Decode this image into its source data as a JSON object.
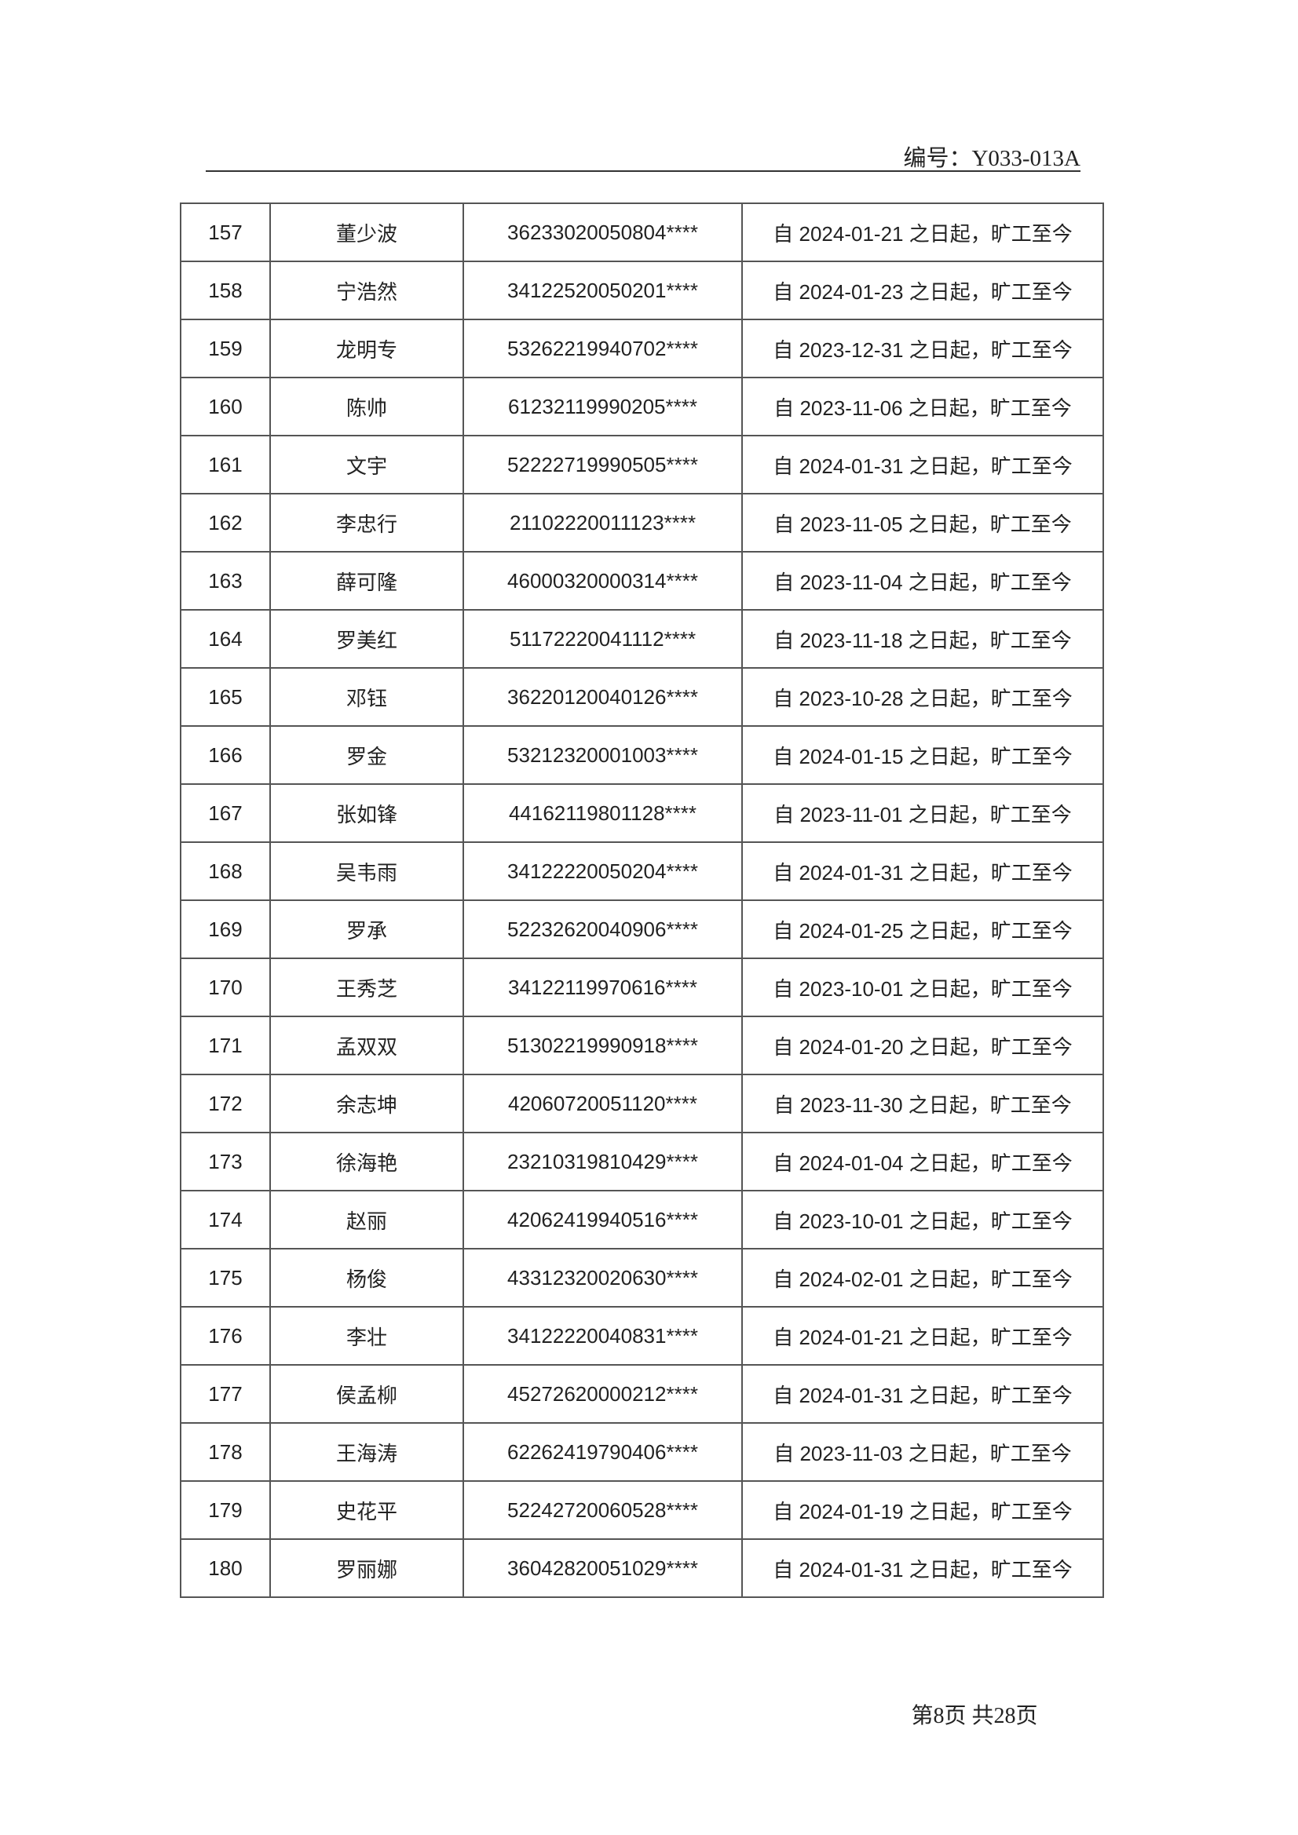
{
  "header": {
    "code": "编号：Y033-013A"
  },
  "table": {
    "rows": [
      [
        "157",
        "董少波",
        "36233020050804****",
        "自 2024-01-21 之日起，旷工至今"
      ],
      [
        "158",
        "宁浩然",
        "34122520050201****",
        "自 2024-01-23 之日起，旷工至今"
      ],
      [
        "159",
        "龙明专",
        "53262219940702****",
        "自 2023-12-31 之日起，旷工至今"
      ],
      [
        "160",
        "陈帅",
        "61232119990205****",
        "自 2023-11-06 之日起，旷工至今"
      ],
      [
        "161",
        "文宇",
        "52222719990505****",
        "自 2024-01-31 之日起，旷工至今"
      ],
      [
        "162",
        "李忠行",
        "21102220011123****",
        "自 2023-11-05 之日起，旷工至今"
      ],
      [
        "163",
        "薛可隆",
        "46000320000314****",
        "自 2023-11-04 之日起，旷工至今"
      ],
      [
        "164",
        "罗美红",
        "51172220041112****",
        "自 2023-11-18 之日起，旷工至今"
      ],
      [
        "165",
        "邓钰",
        "36220120040126****",
        "自 2023-10-28 之日起，旷工至今"
      ],
      [
        "166",
        "罗金",
        "53212320001003****",
        "自 2024-01-15 之日起，旷工至今"
      ],
      [
        "167",
        "张如锋",
        "44162119801128****",
        "自 2023-11-01 之日起，旷工至今"
      ],
      [
        "168",
        "吴韦雨",
        "34122220050204****",
        "自 2024-01-31 之日起，旷工至今"
      ],
      [
        "169",
        "罗承",
        "52232620040906****",
        "自 2024-01-25 之日起，旷工至今"
      ],
      [
        "170",
        "王秀芝",
        "34122119970616****",
        "自 2023-10-01 之日起，旷工至今"
      ],
      [
        "171",
        "孟双双",
        "51302219990918****",
        "自 2024-01-20 之日起，旷工至今"
      ],
      [
        "172",
        "余志坤",
        "42060720051120****",
        "自 2023-11-30 之日起，旷工至今"
      ],
      [
        "173",
        "徐海艳",
        "23210319810429****",
        "自 2024-01-04 之日起，旷工至今"
      ],
      [
        "174",
        "赵丽",
        "42062419940516****",
        "自 2023-10-01 之日起，旷工至今"
      ],
      [
        "175",
        "杨俊",
        "43312320020630****",
        "自 2024-02-01 之日起，旷工至今"
      ],
      [
        "176",
        "李壮",
        "34122220040831****",
        "自 2024-01-21 之日起，旷工至今"
      ],
      [
        "177",
        "侯孟柳",
        "45272620000212****",
        "自 2024-01-31 之日起，旷工至今"
      ],
      [
        "178",
        "王海涛",
        "62262419790406****",
        "自 2023-11-03 之日起，旷工至今"
      ],
      [
        "179",
        "史花平",
        "52242720060528****",
        "自 2024-01-19 之日起，旷工至今"
      ],
      [
        "180",
        "罗丽娜",
        "36042820051029****",
        "自 2024-01-31 之日起，旷工至今"
      ]
    ]
  },
  "footer": {
    "page": "第8页 共28页"
  }
}
